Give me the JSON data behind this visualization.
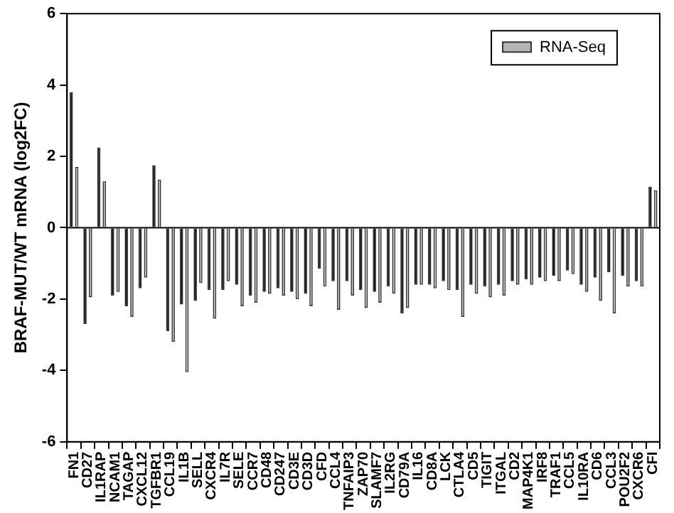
{
  "chart_data": {
    "type": "bar",
    "ylabel": "BRAF-MUT/WT mRNA (log2FC)",
    "categories": [
      "FN1",
      "CD27",
      "IL1RAP",
      "NCAM1",
      "TAGAP",
      "CXCL12",
      "TGFBR1",
      "CCL19",
      "IL1B",
      "SELL",
      "CXCR4",
      "IL7R",
      "SELE",
      "CCR7",
      "CD48",
      "CD247",
      "CD3E",
      "CD3D",
      "CFD",
      "CCL4",
      "TNFAIP3",
      "ZAP70",
      "SLAMF7",
      "IL2RG",
      "CD79A",
      "IL16",
      "CD8A",
      "LCK",
      "CTLA4",
      "CD5",
      "TIGIT",
      "ITGAL",
      "CD2",
      "MAP4K1",
      "IRF8",
      "TRAF1",
      "CCL5",
      "IL10RA",
      "CD6",
      "CCL3",
      "POU2F2",
      "CXCR6",
      "CFI"
    ],
    "series": [
      {
        "color": "#000000",
        "values": [
          3.8,
          -2.7,
          2.25,
          -1.9,
          -2.2,
          -1.7,
          1.75,
          -2.9,
          -2.15,
          -2.05,
          -1.75,
          -1.75,
          -1.6,
          -1.9,
          -1.8,
          -1.7,
          -1.8,
          -1.85,
          -1.15,
          -1.5,
          -1.5,
          -1.75,
          -1.8,
          -1.65,
          -2.4,
          -1.6,
          -1.6,
          -1.5,
          -1.75,
          -1.6,
          -1.65,
          -1.6,
          -1.5,
          -1.45,
          -1.4,
          -1.35,
          -1.2,
          -1.6,
          -1.4,
          -1.25,
          -1.35,
          -1.5,
          1.15
        ]
      },
      {
        "name": "RNA-Seq",
        "color": "#b4b4b4",
        "values": [
          1.7,
          -1.95,
          1.3,
          -1.8,
          -2.5,
          -1.4,
          1.35,
          -3.2,
          -4.05,
          -1.55,
          -2.55,
          -1.5,
          -2.2,
          -2.1,
          -1.85,
          -1.9,
          -2.0,
          -2.2,
          -1.65,
          -2.3,
          -1.9,
          -2.25,
          -2.1,
          -1.85,
          -2.25,
          -1.6,
          -1.7,
          -1.75,
          -2.5,
          -1.85,
          -1.95,
          -1.9,
          -1.6,
          -1.6,
          -1.5,
          -1.5,
          -1.3,
          -1.8,
          -2.05,
          -2.4,
          -1.65,
          -1.65,
          1.05
        ]
      }
    ],
    "ylim": [
      -6,
      6
    ],
    "yticks": [
      -6,
      -4,
      -2,
      0,
      2,
      4,
      6
    ],
    "legend": "top right"
  }
}
